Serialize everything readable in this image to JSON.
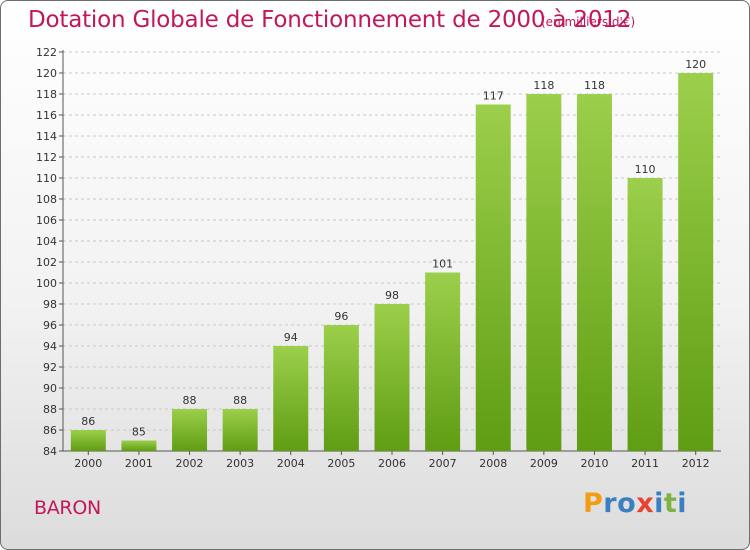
{
  "header": {
    "title": "Dotation Globale de Fonctionnement de 2000 à 2012",
    "subtitle": "(en milliers d'€)"
  },
  "commune": "BARON",
  "logo": {
    "text": "Proxiti",
    "letters": [
      {
        "char": "P",
        "color": "#f39c12"
      },
      {
        "char": "r",
        "color": "#3a7fc1"
      },
      {
        "char": "o",
        "color": "#3a7fc1"
      },
      {
        "char": "x",
        "color": "#e8432f"
      },
      {
        "char": "i",
        "color": "#3a7fc1"
      },
      {
        "char": "t",
        "color": "#7cb342"
      },
      {
        "char": "i",
        "color": "#3a7fc1"
      }
    ]
  },
  "colors": {
    "title": "#c2185b",
    "bar_top": "#9ccf4b",
    "bar_bottom": "#5f9d13",
    "grid": "#c8c8c8"
  },
  "chart_data": {
    "type": "bar",
    "title": "Dotation Globale de Fonctionnement de 2000 à 2012",
    "subtitle": "(en milliers d'€)",
    "categories": [
      "2000",
      "2001",
      "2002",
      "2003",
      "2004",
      "2005",
      "2006",
      "2007",
      "2008",
      "2009",
      "2010",
      "2011",
      "2012"
    ],
    "values": [
      86,
      85,
      88,
      88,
      94,
      96,
      98,
      101,
      117,
      118,
      118,
      110,
      120
    ],
    "ylim": [
      84,
      122
    ],
    "yticks": [
      84,
      86,
      88,
      90,
      92,
      94,
      96,
      98,
      100,
      102,
      104,
      106,
      108,
      110,
      112,
      114,
      116,
      118,
      120,
      122
    ],
    "grid": true,
    "data_labels": true
  }
}
